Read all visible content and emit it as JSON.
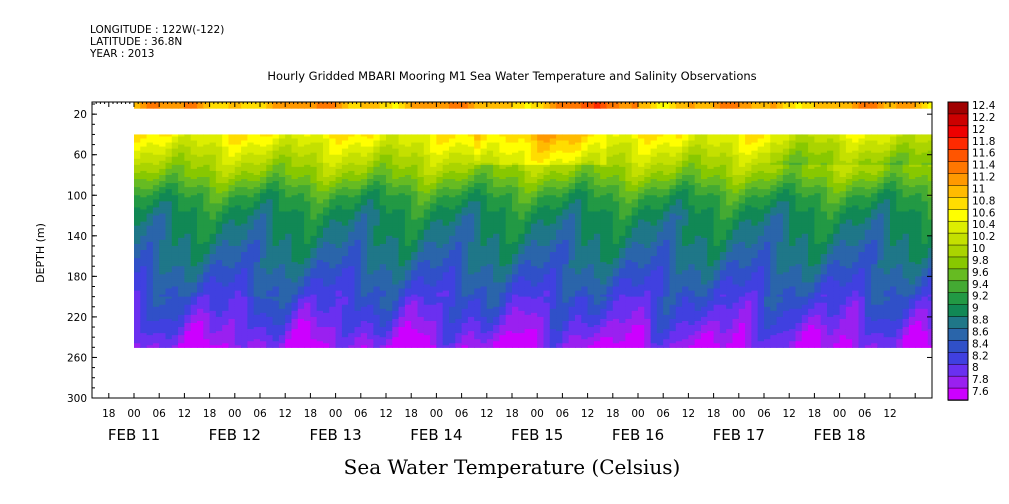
{
  "header": {
    "longitude": "LONGITUDE : 122W(-122)",
    "latitude": "LATITUDE : 36.8N",
    "year": "YEAR : 2013"
  },
  "chart_data": {
    "type": "heatmap",
    "title": "Hourly Gridded MBARI Mooring M1 Sea Water Temperature and Salinity Observations",
    "xlabel": "",
    "ylabel": "DEPTH (m)",
    "colorbar_label": "Sea Water Temperature (Celsius)",
    "y_ticks": [
      20,
      60,
      100,
      140,
      180,
      220,
      260,
      300
    ],
    "ylim": [
      300,
      8
    ],
    "x_hour_labels": [
      "18",
      "00",
      "06",
      "12",
      "18",
      "00",
      "06",
      "12",
      "18",
      "00",
      "06",
      "12",
      "18",
      "00",
      "06",
      "12",
      "18",
      "00",
      "06",
      "12",
      "18",
      "00",
      "06",
      "12",
      "18",
      "00",
      "06",
      "12",
      "18",
      "00",
      "06",
      "12"
    ],
    "x_date_labels": [
      "FEB 11",
      "FEB 12",
      "FEB 13",
      "FEB 14",
      "FEB 15",
      "FEB 16",
      "FEB 17",
      "FEB 18"
    ],
    "x_hours_start": 18,
    "x_range_hours": [
      -10,
      190
    ],
    "data_time_range_hours": [
      0,
      190
    ],
    "colorbar_levels": [
      12.4,
      12.2,
      12,
      11.8,
      11.6,
      11.4,
      11.2,
      11,
      10.8,
      10.6,
      10.4,
      10.2,
      10,
      9.8,
      9.6,
      9.4,
      9.2,
      9,
      8.8,
      8.6,
      8.4,
      8.2,
      8,
      7.8,
      7.6
    ],
    "colorbar_colors": [
      "#a00000",
      "#cc0000",
      "#ee0000",
      "#ff2a00",
      "#ff5500",
      "#ff7700",
      "#ff9900",
      "#ffbb00",
      "#ffdd00",
      "#ffff00",
      "#ddee00",
      "#c4e000",
      "#aad400",
      "#88c800",
      "#66bb22",
      "#44aa33",
      "#229944",
      "#118855",
      "#1f7788",
      "#2a65aa",
      "#3050c8",
      "#4040e0",
      "#6a30f0",
      "#9a20f0",
      "#cc00ff"
    ],
    "depth_profile": [
      {
        "depth": 10,
        "temp": 11.2
      },
      {
        "depth": 40,
        "temp": 10.7
      },
      {
        "depth": 60,
        "temp": 10.3
      },
      {
        "depth": 80,
        "temp": 9.9
      },
      {
        "depth": 100,
        "temp": 9.4
      },
      {
        "depth": 120,
        "temp": 9.1
      },
      {
        "depth": 140,
        "temp": 8.95
      },
      {
        "depth": 160,
        "temp": 8.8
      },
      {
        "depth": 180,
        "temp": 8.6
      },
      {
        "depth": 200,
        "temp": 8.4
      },
      {
        "depth": 220,
        "temp": 8.2
      },
      {
        "depth": 240,
        "temp": 7.95
      },
      {
        "depth": 250,
        "temp": 7.8
      }
    ]
  }
}
